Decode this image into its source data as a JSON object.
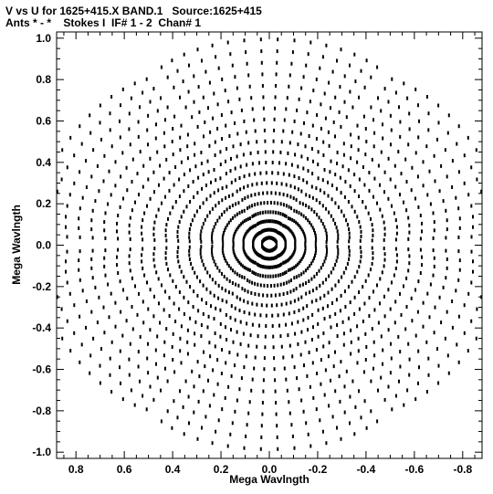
{
  "header": {
    "line1": "V vs U for 1625+415.X BAND.1   Source:1625+415",
    "line2": "Ants * - *    Stokes I  IF# 1 - 2  Chan# 1"
  },
  "chart_data": {
    "type": "scatter",
    "title": "V vs U for 1625+415.X BAND.1   Source:1625+415",
    "subtitle": "Ants * - *    Stokes I  IF# 1 - 2  Chan# 1",
    "xlabel": "Mega Wavlngth",
    "ylabel": "Mega Wavlngth",
    "xlim": [
      0.88,
      -0.88
    ],
    "ylim": [
      -1.03,
      1.03
    ],
    "x_reversed": true,
    "grid": false,
    "legend": "none",
    "marker_color": "#000000",
    "x_ticks": [
      0.8,
      0.6,
      0.4,
      0.2,
      0.0,
      -0.2,
      -0.4,
      -0.6,
      -0.8
    ],
    "x_tick_labels": [
      "0.8",
      "0.6",
      "0.4",
      "0.2",
      "0.0",
      "-0.2",
      "-0.4",
      "-0.6",
      "-0.8"
    ],
    "y_ticks": [
      1.0,
      0.8,
      0.6,
      0.4,
      0.2,
      0.0,
      -0.2,
      -0.4,
      -0.6,
      -0.8,
      -1.0
    ],
    "y_tick_labels": [
      "1.0",
      "0.8",
      "0.6",
      "0.4",
      "0.2",
      "0.0",
      "-0.2",
      "-0.4",
      "-0.6",
      "-0.8",
      "-1.0"
    ],
    "uv_coverage": {
      "pattern": "six-armed star (VLA Y-configuration) of elliptical tracks, Hermitian symmetric",
      "arm_angles_deg": [
        90,
        30,
        -30
      ],
      "arm_tip_radii": [
        0.99,
        0.97,
        0.97
      ],
      "track_count": 20,
      "hour_angle_span_deg": 110,
      "points_per_track": 16,
      "track_axis_ratio": 0.55
    }
  }
}
